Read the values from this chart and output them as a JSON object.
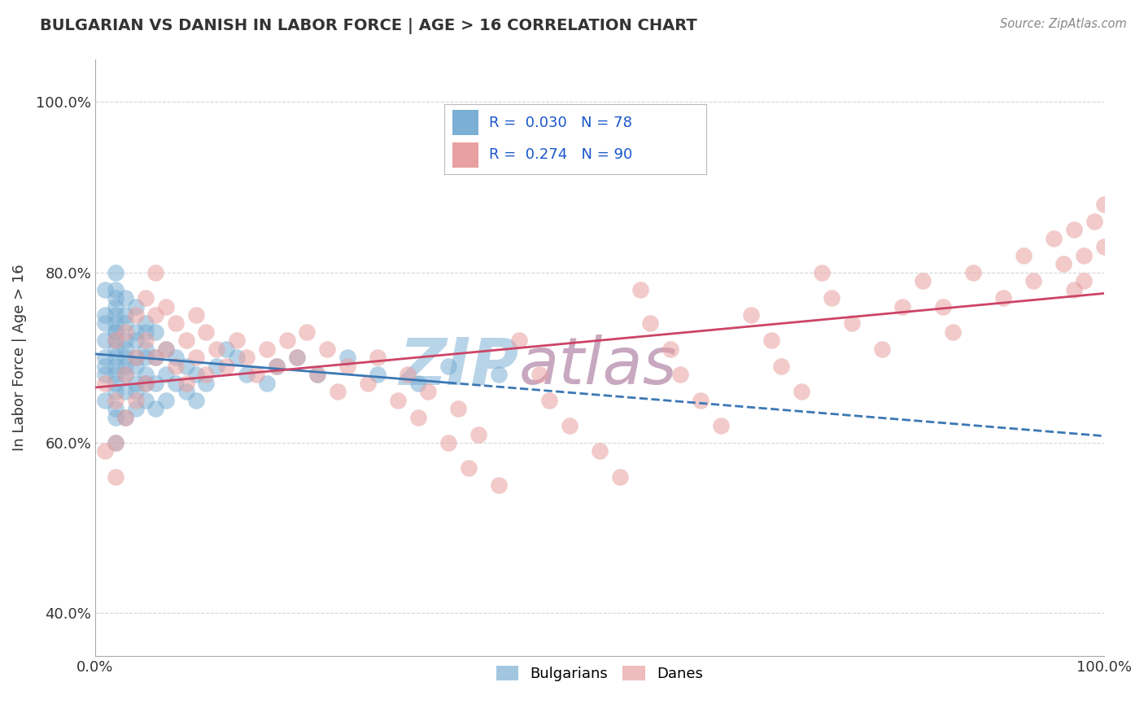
{
  "title": "BULGARIAN VS DANISH IN LABOR FORCE | AGE > 16 CORRELATION CHART",
  "source_text": "Source: ZipAtlas.com",
  "ylabel": "In Labor Force | Age > 16",
  "xlim": [
    0.0,
    1.0
  ],
  "ylim": [
    0.35,
    1.05
  ],
  "yticks": [
    0.4,
    0.6,
    0.8,
    1.0
  ],
  "yticklabels": [
    "40.0%",
    "60.0%",
    "80.0%",
    "100.0%"
  ],
  "bulgarian_R": 0.03,
  "bulgarian_N": 78,
  "danish_R": 0.274,
  "danish_N": 90,
  "bulgarian_color": "#7bafd4",
  "danish_color": "#e8a0a0",
  "bulgarian_line_color": "#3c78b4",
  "danish_line_color": "#cc4466",
  "bg_color": "#ffffff",
  "grid_color": "#cccccc",
  "title_color": "#333333",
  "axis_label_color": "#333333",
  "ytick_color": "#1a56cc",
  "watermark_zip_color": "#b8d4e8",
  "watermark_atlas_color": "#c8a8c0",
  "bulgarian_x": [
    0.01,
    0.01,
    0.01,
    0.01,
    0.01,
    0.01,
    0.01,
    0.01,
    0.02,
    0.02,
    0.02,
    0.02,
    0.02,
    0.02,
    0.02,
    0.02,
    0.02,
    0.02,
    0.02,
    0.02,
    0.02,
    0.02,
    0.02,
    0.02,
    0.02,
    0.02,
    0.03,
    0.03,
    0.03,
    0.03,
    0.03,
    0.03,
    0.03,
    0.03,
    0.03,
    0.03,
    0.04,
    0.04,
    0.04,
    0.04,
    0.04,
    0.04,
    0.04,
    0.04,
    0.05,
    0.05,
    0.05,
    0.05,
    0.05,
    0.05,
    0.05,
    0.06,
    0.06,
    0.06,
    0.06,
    0.07,
    0.07,
    0.07,
    0.08,
    0.08,
    0.09,
    0.09,
    0.1,
    0.1,
    0.11,
    0.12,
    0.13,
    0.14,
    0.15,
    0.17,
    0.18,
    0.2,
    0.22,
    0.25,
    0.28,
    0.32,
    0.35,
    0.4
  ],
  "bulgarian_y": [
    0.68,
    0.72,
    0.74,
    0.78,
    0.75,
    0.7,
    0.65,
    0.69,
    0.8,
    0.77,
    0.74,
    0.71,
    0.68,
    0.76,
    0.73,
    0.7,
    0.67,
    0.64,
    0.78,
    0.75,
    0.72,
    0.69,
    0.66,
    0.63,
    0.6,
    0.73,
    0.77,
    0.74,
    0.71,
    0.68,
    0.75,
    0.72,
    0.69,
    0.66,
    0.63,
    0.7,
    0.76,
    0.73,
    0.7,
    0.67,
    0.64,
    0.72,
    0.69,
    0.66,
    0.74,
    0.71,
    0.68,
    0.65,
    0.73,
    0.7,
    0.67,
    0.73,
    0.7,
    0.67,
    0.64,
    0.71,
    0.68,
    0.65,
    0.7,
    0.67,
    0.69,
    0.66,
    0.68,
    0.65,
    0.67,
    0.69,
    0.71,
    0.7,
    0.68,
    0.67,
    0.69,
    0.7,
    0.68,
    0.7,
    0.68,
    0.67,
    0.69,
    0.68
  ],
  "danish_x": [
    0.01,
    0.01,
    0.02,
    0.02,
    0.02,
    0.02,
    0.03,
    0.03,
    0.03,
    0.04,
    0.04,
    0.04,
    0.05,
    0.05,
    0.05,
    0.06,
    0.06,
    0.06,
    0.07,
    0.07,
    0.08,
    0.08,
    0.09,
    0.09,
    0.1,
    0.1,
    0.11,
    0.11,
    0.12,
    0.13,
    0.14,
    0.15,
    0.16,
    0.17,
    0.18,
    0.19,
    0.2,
    0.21,
    0.22,
    0.23,
    0.24,
    0.25,
    0.27,
    0.28,
    0.3,
    0.31,
    0.32,
    0.33,
    0.35,
    0.36,
    0.37,
    0.38,
    0.4,
    0.42,
    0.44,
    0.45,
    0.47,
    0.5,
    0.52,
    0.54,
    0.55,
    0.57,
    0.58,
    0.6,
    0.62,
    0.65,
    0.67,
    0.68,
    0.7,
    0.72,
    0.73,
    0.75,
    0.78,
    0.8,
    0.82,
    0.84,
    0.85,
    0.87,
    0.9,
    0.92,
    0.93,
    0.95,
    0.96,
    0.97,
    0.97,
    0.98,
    0.98,
    0.99,
    1.0,
    1.0
  ],
  "danish_y": [
    0.67,
    0.59,
    0.72,
    0.65,
    0.6,
    0.56,
    0.73,
    0.68,
    0.63,
    0.75,
    0.7,
    0.65,
    0.77,
    0.72,
    0.67,
    0.8,
    0.75,
    0.7,
    0.76,
    0.71,
    0.74,
    0.69,
    0.72,
    0.67,
    0.75,
    0.7,
    0.73,
    0.68,
    0.71,
    0.69,
    0.72,
    0.7,
    0.68,
    0.71,
    0.69,
    0.72,
    0.7,
    0.73,
    0.68,
    0.71,
    0.66,
    0.69,
    0.67,
    0.7,
    0.65,
    0.68,
    0.63,
    0.66,
    0.6,
    0.64,
    0.57,
    0.61,
    0.55,
    0.72,
    0.68,
    0.65,
    0.62,
    0.59,
    0.56,
    0.78,
    0.74,
    0.71,
    0.68,
    0.65,
    0.62,
    0.75,
    0.72,
    0.69,
    0.66,
    0.8,
    0.77,
    0.74,
    0.71,
    0.76,
    0.79,
    0.76,
    0.73,
    0.8,
    0.77,
    0.82,
    0.79,
    0.84,
    0.81,
    0.78,
    0.85,
    0.82,
    0.79,
    0.86,
    0.83,
    0.88
  ]
}
